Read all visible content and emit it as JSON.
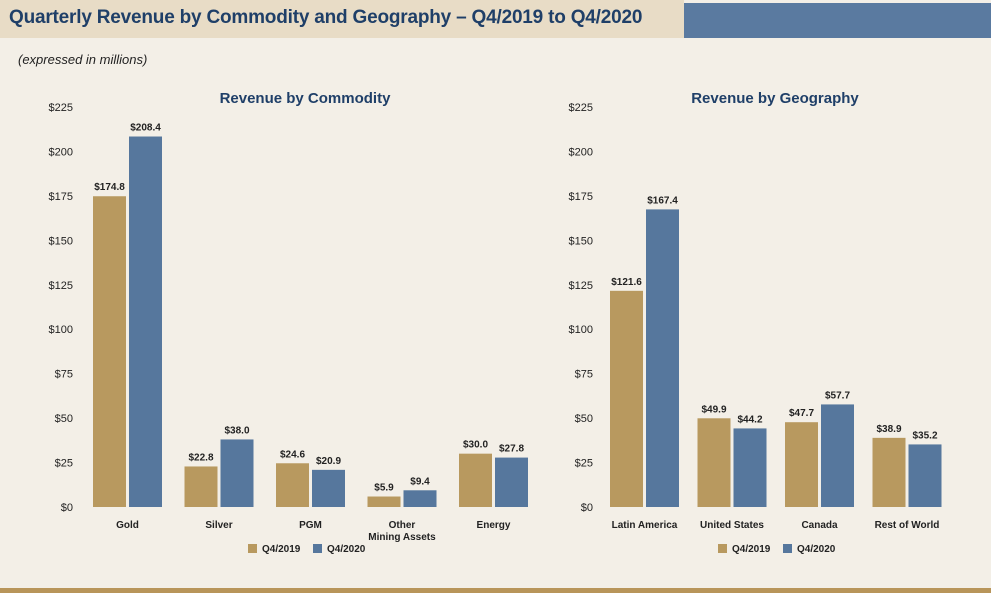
{
  "header": {
    "title": "Quarterly Revenue by Commodity and Geography – Q4/2019 to Q4/2020",
    "note": "(expressed in millions)"
  },
  "colors": {
    "q4_2019": "#b8995f",
    "q4_2020": "#56779d",
    "title_text": "#1f3f68",
    "header_bg": "#e8dcc6",
    "header_accent": "#5a7aa0"
  },
  "chart_data": [
    {
      "type": "bar",
      "title": "Revenue by Commodity",
      "categories": [
        [
          "Gold"
        ],
        [
          "Silver"
        ],
        [
          "PGM"
        ],
        [
          "Other",
          "Mining Assets"
        ],
        [
          "Energy"
        ]
      ],
      "series": [
        {
          "name": "Q4/2019",
          "values": [
            174.8,
            22.8,
            24.6,
            5.9,
            30.0
          ],
          "labels": [
            "$174.8",
            "$22.8",
            "$24.6",
            "$5.9",
            "$30.0"
          ]
        },
        {
          "name": "Q4/2020",
          "values": [
            208.4,
            38.0,
            20.9,
            9.4,
            27.8
          ],
          "labels": [
            "$208.4",
            "$38.0",
            "$20.9",
            "$9.4",
            "$27.8"
          ]
        }
      ],
      "ylim": [
        0,
        225
      ],
      "yticks": [
        "$0",
        "$25",
        "$50",
        "$75",
        "$100",
        "$125",
        "$150",
        "$175",
        "$200",
        "$225"
      ],
      "legend": "bottom-center"
    },
    {
      "type": "bar",
      "title": "Revenue by Geography",
      "categories": [
        [
          "Latin America"
        ],
        [
          "United States"
        ],
        [
          "Canada"
        ],
        [
          "Rest of World"
        ]
      ],
      "series": [
        {
          "name": "Q4/2019",
          "values": [
            121.6,
            49.9,
            47.7,
            38.9
          ],
          "labels": [
            "$121.6",
            "$49.9",
            "$47.7",
            "$38.9"
          ]
        },
        {
          "name": "Q4/2020",
          "values": [
            167.4,
            44.2,
            57.7,
            35.2
          ],
          "labels": [
            "$167.4",
            "$44.2",
            "$57.7",
            "$35.2"
          ]
        }
      ],
      "ylim": [
        0,
        225
      ],
      "yticks": [
        "$0",
        "$25",
        "$50",
        "$75",
        "$100",
        "$125",
        "$150",
        "$175",
        "$200",
        "$225"
      ],
      "legend": "bottom-center"
    }
  ]
}
